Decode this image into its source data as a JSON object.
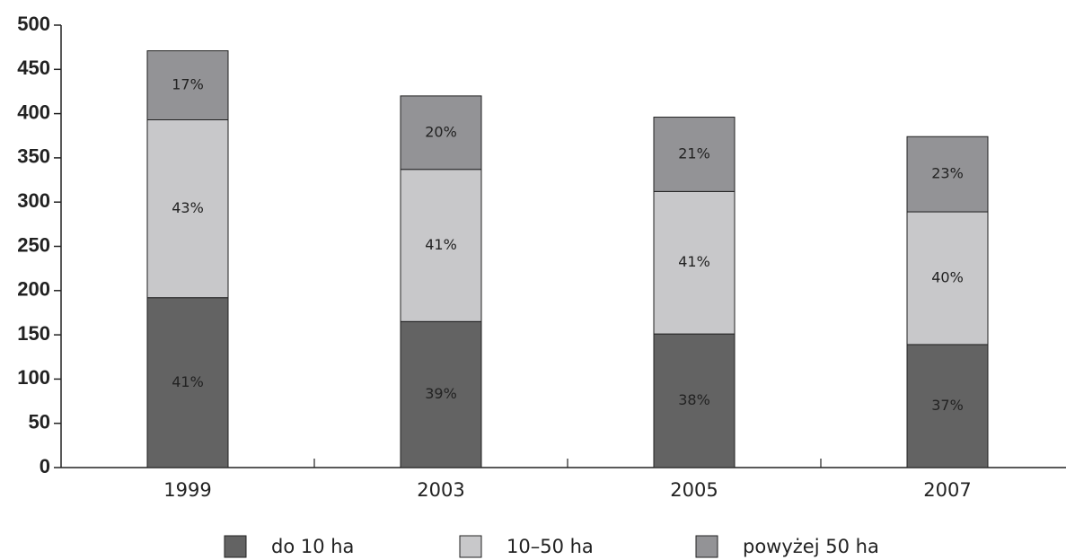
{
  "chart_data": {
    "type": "stacked_bar",
    "categories": [
      "1999",
      "2003",
      "2005",
      "2007"
    ],
    "series": [
      {
        "name": "do 10 ha",
        "color": "#636363",
        "values": [
          192,
          165,
          151,
          139
        ],
        "labels": [
          "41%",
          "39%",
          "38%",
          "37%"
        ]
      },
      {
        "name": "10–50 ha",
        "color": "#c8c8ca",
        "values": [
          201,
          172,
          161,
          150
        ],
        "labels": [
          "43%",
          "41%",
          "41%",
          "40%"
        ]
      },
      {
        "name": "powyżej 50 ha",
        "color": "#939396",
        "values": [
          78,
          83,
          84,
          85
        ],
        "labels": [
          "17%",
          "20%",
          "21%",
          "23%"
        ]
      }
    ],
    "ylim": [
      0,
      500
    ],
    "yticks": [
      0,
      50,
      100,
      150,
      200,
      250,
      300,
      350,
      400,
      450,
      500
    ],
    "grid": false
  }
}
